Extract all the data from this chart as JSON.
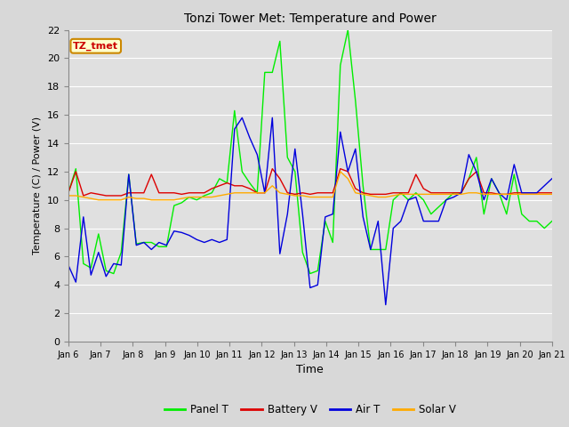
{
  "title": "Tonzi Tower Met: Temperature and Power",
  "xlabel": "Time",
  "ylabel": "Temperature (C) / Power (V)",
  "ylim": [
    0,
    22
  ],
  "yticks": [
    0,
    2,
    4,
    6,
    8,
    10,
    12,
    14,
    16,
    18,
    20,
    22
  ],
  "xtick_labels": [
    "Jan 6",
    "Jan 7",
    "Jan 8",
    "Jan 9",
    "Jan 10",
    "Jan 11",
    "Jan 12",
    "Jan 13",
    "Jan 14",
    "Jan 15",
    "Jan 16",
    "Jan 17",
    "Jan 18",
    "Jan 19",
    "Jan 20",
    "Jan 21"
  ],
  "legend_label": "TZ_tmet",
  "colors": {
    "panel_t": "#00ee00",
    "battery_v": "#dd0000",
    "air_t": "#0000dd",
    "solar_v": "#ffaa00"
  },
  "background_color": "#d8d8d8",
  "plot_bg_color": "#e0e0e0",
  "grid_color": "#ffffff",
  "panel_t": [
    10.5,
    12.2,
    5.5,
    5.2,
    7.6,
    5.0,
    4.8,
    6.3,
    11.8,
    6.9,
    7.0,
    7.0,
    6.7,
    6.7,
    9.6,
    9.8,
    10.2,
    10.0,
    10.3,
    10.5,
    11.5,
    11.2,
    16.3,
    12.0,
    11.2,
    10.5,
    19.0,
    19.0,
    21.2,
    13.0,
    12.0,
    6.3,
    4.8,
    5.0,
    8.5,
    7.0,
    19.5,
    22.0,
    17.0,
    11.0,
    6.5,
    6.5,
    6.5,
    10.0,
    10.5,
    10.0,
    10.5,
    10.0,
    9.0,
    9.5,
    10.0,
    10.5,
    10.5,
    11.5,
    13.0,
    9.0,
    11.5,
    10.5,
    9.0,
    11.8,
    9.0,
    8.5,
    8.5,
    8.0,
    8.5
  ],
  "battery_v": [
    10.5,
    12.0,
    10.3,
    10.5,
    10.4,
    10.3,
    10.3,
    10.3,
    10.5,
    10.5,
    10.5,
    11.8,
    10.5,
    10.5,
    10.5,
    10.4,
    10.5,
    10.5,
    10.5,
    10.8,
    11.0,
    11.2,
    11.0,
    11.0,
    10.8,
    10.5,
    10.5,
    12.2,
    11.5,
    10.5,
    10.4,
    10.5,
    10.4,
    10.5,
    10.5,
    10.5,
    12.2,
    12.0,
    10.8,
    10.5,
    10.4,
    10.4,
    10.4,
    10.5,
    10.5,
    10.5,
    11.8,
    10.8,
    10.5,
    10.5,
    10.5,
    10.5,
    10.5,
    11.5,
    12.0,
    10.5,
    10.5,
    10.4,
    10.4,
    10.5,
    10.5,
    10.5,
    10.5,
    10.5,
    10.5
  ],
  "air_t": [
    5.4,
    4.2,
    8.8,
    4.7,
    6.3,
    4.6,
    5.5,
    5.4,
    11.8,
    6.8,
    7.0,
    6.5,
    7.0,
    6.8,
    7.8,
    7.7,
    7.5,
    7.2,
    7.0,
    7.2,
    7.0,
    7.2,
    15.0,
    15.8,
    14.4,
    13.2,
    10.5,
    15.8,
    6.2,
    9.0,
    13.6,
    9.0,
    3.8,
    4.0,
    8.8,
    9.0,
    14.8,
    12.0,
    13.6,
    8.8,
    6.5,
    8.5,
    2.6,
    8.0,
    8.5,
    10.0,
    10.2,
    8.5,
    8.5,
    8.5,
    10.0,
    10.2,
    10.5,
    13.2,
    12.0,
    10.0,
    11.5,
    10.5,
    10.0,
    12.5,
    10.5,
    10.5,
    10.5,
    11.0,
    11.5
  ],
  "solar_v": [
    10.3,
    10.3,
    10.2,
    10.1,
    10.0,
    10.0,
    10.0,
    10.0,
    10.2,
    10.1,
    10.1,
    10.0,
    10.0,
    10.0,
    10.0,
    10.1,
    10.2,
    10.2,
    10.2,
    10.2,
    10.3,
    10.4,
    10.5,
    10.5,
    10.5,
    10.5,
    10.5,
    11.0,
    10.5,
    10.4,
    10.3,
    10.3,
    10.2,
    10.2,
    10.2,
    10.2,
    12.0,
    11.5,
    10.5,
    10.4,
    10.3,
    10.2,
    10.2,
    10.3,
    10.4,
    10.4,
    10.4,
    10.4,
    10.4,
    10.4,
    10.4,
    10.4,
    10.4,
    10.5,
    10.5,
    10.4,
    10.4,
    10.4,
    10.4,
    10.4,
    10.4,
    10.4,
    10.4,
    10.4,
    10.4
  ]
}
